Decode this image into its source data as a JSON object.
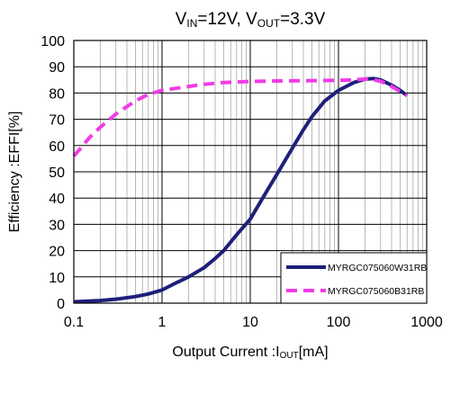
{
  "chart_data": {
    "type": "line",
    "title": {
      "parts": [
        {
          "text": "V",
          "sub": false
        },
        {
          "text": "IN",
          "sub": true
        },
        {
          "text": "=12V,  V",
          "sub": false
        },
        {
          "text": "OUT",
          "sub": true
        },
        {
          "text": "=3.3V",
          "sub": false
        }
      ]
    },
    "xlabel": {
      "parts": [
        {
          "text": "Output Current  :I",
          "sub": false
        },
        {
          "text": "OUT",
          "sub": true
        },
        {
          "text": "[mA]",
          "sub": false
        }
      ]
    },
    "ylabel": "Efficiency  :EFFI[%]",
    "x_scale": "log",
    "xlim": [
      0.1,
      1000
    ],
    "ylim": [
      0,
      100
    ],
    "x_ticks": [
      0.1,
      1,
      10,
      100,
      1000
    ],
    "x_tick_labels": [
      "0.1",
      "1",
      "10",
      "100",
      "1000"
    ],
    "y_ticks": [
      0,
      10,
      20,
      30,
      40,
      50,
      60,
      70,
      80,
      90,
      100
    ],
    "y_tick_labels": [
      "0",
      "10",
      "20",
      "30",
      "40",
      "50",
      "60",
      "70",
      "80",
      "90",
      "100"
    ],
    "grid": true,
    "legend_position": "bottom-right",
    "series": [
      {
        "name": "MYRGC075060W31RB",
        "color": "#1f1f7a",
        "style": "solid",
        "points": [
          [
            0.1,
            0.5
          ],
          [
            0.2,
            1
          ],
          [
            0.3,
            1.5
          ],
          [
            0.5,
            2.5
          ],
          [
            0.7,
            3.5
          ],
          [
            1,
            5
          ],
          [
            1.5,
            8
          ],
          [
            2,
            10
          ],
          [
            3,
            13.5
          ],
          [
            4,
            17
          ],
          [
            5,
            20
          ],
          [
            7,
            26
          ],
          [
            10,
            32
          ],
          [
            15,
            42
          ],
          [
            20,
            49
          ],
          [
            30,
            59
          ],
          [
            40,
            66
          ],
          [
            50,
            71
          ],
          [
            70,
            77
          ],
          [
            100,
            81
          ],
          [
            150,
            84
          ],
          [
            200,
            85.3
          ],
          [
            250,
            85.5
          ],
          [
            300,
            85
          ],
          [
            400,
            83
          ],
          [
            500,
            81
          ],
          [
            600,
            79
          ]
        ]
      },
      {
        "name": "MYRGC075060B31RB",
        "color": "#f03ce6",
        "style": "dashed",
        "points": [
          [
            0.1,
            56
          ],
          [
            0.12,
            59
          ],
          [
            0.15,
            63
          ],
          [
            0.2,
            67
          ],
          [
            0.3,
            72
          ],
          [
            0.5,
            77
          ],
          [
            0.7,
            79.5
          ],
          [
            1,
            81
          ],
          [
            2,
            82.5
          ],
          [
            3,
            83.3
          ],
          [
            5,
            84
          ],
          [
            10,
            84.4
          ],
          [
            20,
            84.6
          ],
          [
            50,
            84.7
          ],
          [
            100,
            84.8
          ],
          [
            150,
            85
          ],
          [
            200,
            85.3
          ],
          [
            250,
            85
          ],
          [
            300,
            84.5
          ],
          [
            400,
            82.5
          ],
          [
            500,
            80.5
          ],
          [
            600,
            79
          ]
        ]
      }
    ]
  }
}
